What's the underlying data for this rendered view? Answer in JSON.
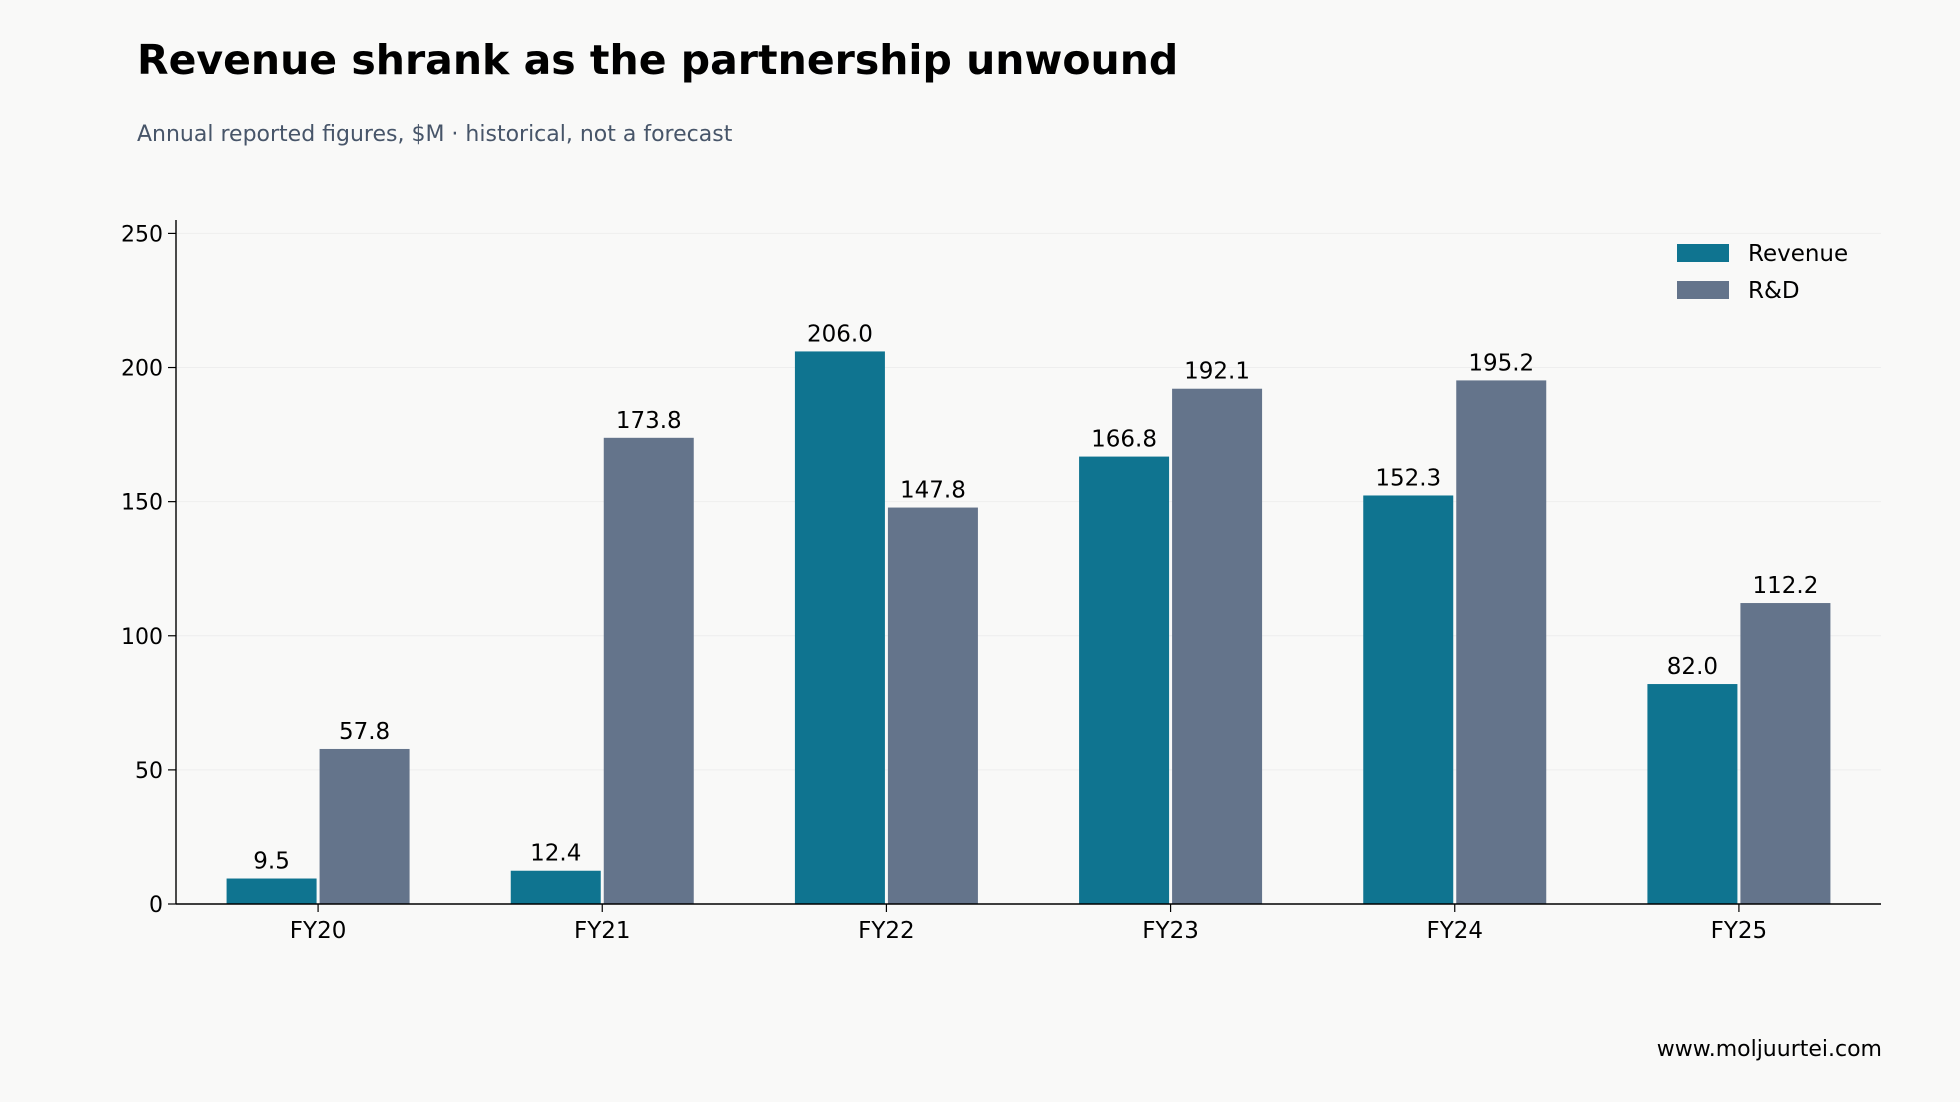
{
  "header": {
    "title": "Revenue shrank as the partnership unwound",
    "subtitle": "Annual reported figures, $M · historical, not a forecast"
  },
  "footer": {
    "source": "www.moljuurtei.com"
  },
  "colors": {
    "revenue": "#0f7490",
    "rd": "#64748b",
    "background": "#f9f9f8",
    "axis": "#000000",
    "grid": "#eeeeee"
  },
  "chart_data": {
    "type": "bar",
    "title": "Revenue shrank as the partnership unwound",
    "subtitle": "Annual reported figures, $M · historical, not a forecast",
    "xlabel": "",
    "ylabel": "",
    "categories": [
      "FY20",
      "FY21",
      "FY22",
      "FY23",
      "FY24",
      "FY25"
    ],
    "series": [
      {
        "name": "Revenue",
        "values": [
          9.5,
          12.4,
          206.0,
          166.8,
          152.3,
          82.0
        ],
        "color": "#0f7490"
      },
      {
        "name": "R&D",
        "values": [
          57.8,
          173.8,
          147.8,
          192.1,
          195.2,
          112.2
        ],
        "color": "#64748b"
      }
    ],
    "data_labels": [
      [
        "9.5",
        "12.4",
        "206.0",
        "166.8",
        "152.3",
        "82.0"
      ],
      [
        "57.8",
        "173.8",
        "147.8",
        "192.1",
        "195.2",
        "112.2"
      ]
    ],
    "yticks": [
      "0",
      "50",
      "100",
      "150",
      "200",
      "250"
    ],
    "ylim": [
      0,
      255
    ],
    "grid": "horizontal",
    "legend": "top-right"
  }
}
